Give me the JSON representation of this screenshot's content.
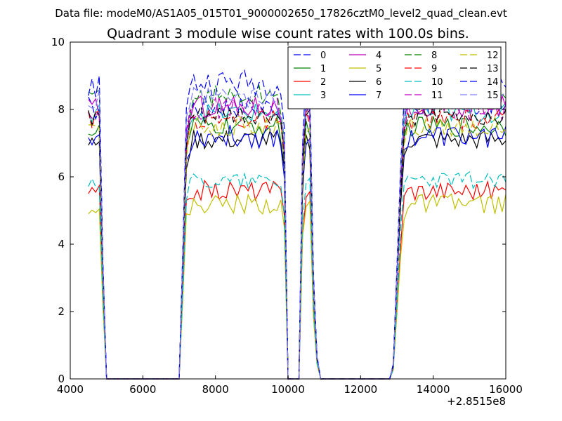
{
  "figure": {
    "header": "Data file: modeM0/AS1A05_015T01_9000002650_17826cztM0_level2_quad_clean.evt"
  },
  "chart_data": {
    "type": "line",
    "title": "Quadrant 3 module wise count rates with 100.0s bins.",
    "xlabel": "",
    "ylabel": "",
    "x_offset_label": "+2.8515e8",
    "xlim": [
      4000,
      16000
    ],
    "ylim": [
      0,
      10
    ],
    "xticks": [
      4000,
      6000,
      8000,
      10000,
      12000,
      14000,
      16000
    ],
    "yticks": [
      0,
      2,
      4,
      6,
      8,
      10
    ],
    "grid": false,
    "legend_position": "top-right",
    "legend_columns": 4,
    "x": [
      4500,
      4600,
      4700,
      4800,
      4900,
      5000,
      5100,
      5500,
      6000,
      6500,
      7000,
      7100,
      7200,
      7300,
      7400,
      7500,
      7600,
      7700,
      7800,
      7900,
      8000,
      8100,
      8200,
      8300,
      8400,
      8500,
      8600,
      8700,
      8800,
      8900,
      9000,
      9100,
      9200,
      9300,
      9400,
      9500,
      9600,
      9700,
      9800,
      9900,
      10000,
      10100,
      10200,
      10300,
      10400,
      10500,
      10600,
      10700,
      10800,
      10900,
      11000,
      11500,
      12000,
      12500,
      12800,
      12900,
      13000,
      13100,
      13200,
      13300,
      13400,
      13500,
      13600,
      13700,
      13800,
      13900,
      14000,
      14100,
      14200,
      14300,
      14400,
      14500,
      14600,
      14700,
      14800,
      14900,
      15000,
      15100,
      15200,
      15300,
      15400,
      15500,
      15600,
      15700,
      15800,
      15900,
      16000
    ],
    "shape": [
      1,
      0.97,
      0.99,
      1,
      0.4,
      0,
      0,
      0,
      0,
      0,
      0,
      0.45,
      0.9,
      0.97,
      1,
      1,
      1,
      1,
      1,
      1,
      1,
      1,
      1,
      1,
      1,
      1,
      1,
      1,
      1,
      1,
      1,
      1,
      1,
      1,
      1,
      1,
      1,
      1,
      0.97,
      0.85,
      0,
      0,
      0,
      0,
      0.8,
      1,
      1,
      0.35,
      0.08,
      0,
      0,
      0,
      0,
      0,
      0,
      0.05,
      0.38,
      0.72,
      0.95,
      1,
      1,
      1,
      1,
      1,
      1,
      1,
      1,
      1,
      1,
      1,
      1,
      1,
      1,
      1,
      1,
      1,
      1,
      1,
      1,
      1,
      1,
      1,
      1,
      1,
      1,
      1,
      1
    ],
    "series": [
      {
        "name": "0",
        "level": 8.1,
        "color": "#0000ff",
        "dash": "10,4",
        "noise": 0.35
      },
      {
        "name": "1",
        "level": 7.5,
        "color": "#008000",
        "dash": "",
        "noise": 0.3
      },
      {
        "name": "2",
        "level": 5.6,
        "color": "#ff0000",
        "dash": "",
        "noise": 0.3
      },
      {
        "name": "3",
        "level": 7.9,
        "color": "#00bfbf",
        "dash": "",
        "noise": 0.3
      },
      {
        "name": "4",
        "level": 8.1,
        "color": "#bf00bf",
        "dash": "",
        "noise": 0.35
      },
      {
        "name": "5",
        "level": 5.2,
        "color": "#bfbf00",
        "dash": "",
        "noise": 0.3
      },
      {
        "name": "6",
        "level": 7.1,
        "color": "#000000",
        "dash": "",
        "noise": 0.3
      },
      {
        "name": "7",
        "level": 7.2,
        "color": "#0000ff",
        "dash": "",
        "noise": 0.35
      },
      {
        "name": "8",
        "level": 8.4,
        "color": "#008000",
        "dash": "10,4",
        "noise": 0.35
      },
      {
        "name": "9",
        "level": 7.7,
        "color": "#ff0000",
        "dash": "10,4",
        "noise": 0.3
      },
      {
        "name": "10",
        "level": 5.9,
        "color": "#00bfbf",
        "dash": "10,4",
        "noise": 0.25
      },
      {
        "name": "11",
        "level": 8.0,
        "color": "#bf00bf",
        "dash": "10,4",
        "noise": 0.35
      },
      {
        "name": "12",
        "level": 7.5,
        "color": "#bfbf00",
        "dash": "10,4",
        "noise": 0.3
      },
      {
        "name": "13",
        "level": 7.8,
        "color": "#000000",
        "dash": "10,4",
        "noise": 0.3
      },
      {
        "name": "14",
        "level": 8.8,
        "color": "#0000ff",
        "dash": "10,4",
        "noise": 0.4
      },
      {
        "name": "15",
        "level": 8.3,
        "color": "#8080ff",
        "dash": "10,4",
        "noise": 0.35
      }
    ]
  }
}
